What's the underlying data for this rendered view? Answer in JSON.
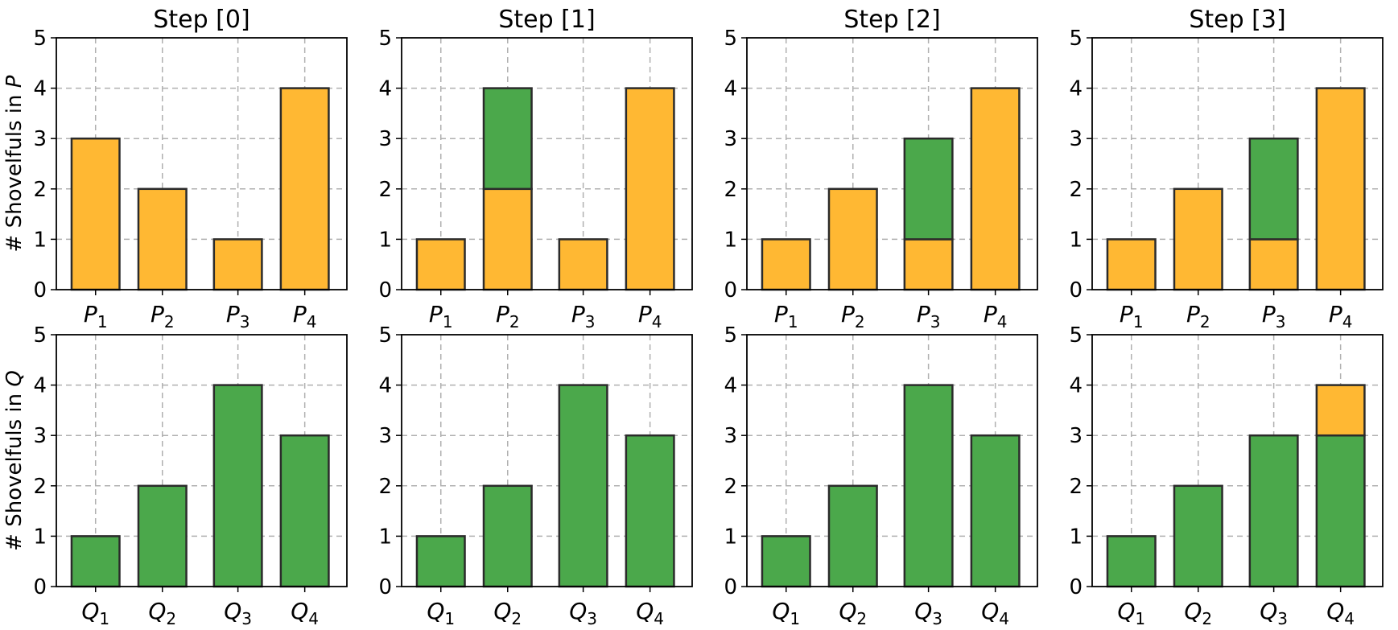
{
  "chart_data": {
    "type": "bar",
    "layout": "2x4 grid of stacked bar charts",
    "colors": {
      "orange": "#FFB833",
      "green": "#4BA84B",
      "edge": "#2b2b2b",
      "grid": "#b0b0b0"
    },
    "ylim": [
      0,
      5
    ],
    "yticks": [
      "0",
      "1",
      "2",
      "3",
      "4",
      "5"
    ],
    "grid": true,
    "column_titles": [
      "Step [0]",
      "Step [1]",
      "Step [2]",
      "Step [3]"
    ],
    "rows": [
      {
        "ylabel_prefix": "# Shovelfuls in ",
        "ylabel_var": "P",
        "category_letter": "P",
        "category_subs": [
          "1",
          "2",
          "3",
          "4"
        ],
        "steps": [
          {
            "title": "Step [0]",
            "bars": [
              [
                {
                  "color": "orange",
                  "value": 3
                }
              ],
              [
                {
                  "color": "orange",
                  "value": 2
                }
              ],
              [
                {
                  "color": "orange",
                  "value": 1
                }
              ],
              [
                {
                  "color": "orange",
                  "value": 4
                }
              ]
            ]
          },
          {
            "title": "Step [1]",
            "bars": [
              [
                {
                  "color": "orange",
                  "value": 1
                }
              ],
              [
                {
                  "color": "orange",
                  "value": 2
                },
                {
                  "color": "green",
                  "value": 2
                }
              ],
              [
                {
                  "color": "orange",
                  "value": 1
                }
              ],
              [
                {
                  "color": "orange",
                  "value": 4
                }
              ]
            ]
          },
          {
            "title": "Step [2]",
            "bars": [
              [
                {
                  "color": "orange",
                  "value": 1
                }
              ],
              [
                {
                  "color": "orange",
                  "value": 2
                }
              ],
              [
                {
                  "color": "orange",
                  "value": 1
                },
                {
                  "color": "green",
                  "value": 2
                }
              ],
              [
                {
                  "color": "orange",
                  "value": 4
                }
              ]
            ]
          },
          {
            "title": "Step [3]",
            "bars": [
              [
                {
                  "color": "orange",
                  "value": 1
                }
              ],
              [
                {
                  "color": "orange",
                  "value": 2
                }
              ],
              [
                {
                  "color": "orange",
                  "value": 1
                },
                {
                  "color": "green",
                  "value": 2
                }
              ],
              [
                {
                  "color": "orange",
                  "value": 4
                }
              ]
            ]
          }
        ]
      },
      {
        "ylabel_prefix": "# Shovelfuls in ",
        "ylabel_var": "Q",
        "category_letter": "Q",
        "category_subs": [
          "1",
          "2",
          "3",
          "4"
        ],
        "steps": [
          {
            "title": "Step [0]",
            "bars": [
              [
                {
                  "color": "green",
                  "value": 1
                }
              ],
              [
                {
                  "color": "green",
                  "value": 2
                }
              ],
              [
                {
                  "color": "green",
                  "value": 4
                }
              ],
              [
                {
                  "color": "green",
                  "value": 3
                }
              ]
            ]
          },
          {
            "title": "Step [1]",
            "bars": [
              [
                {
                  "color": "green",
                  "value": 1
                }
              ],
              [
                {
                  "color": "green",
                  "value": 2
                }
              ],
              [
                {
                  "color": "green",
                  "value": 4
                }
              ],
              [
                {
                  "color": "green",
                  "value": 3
                }
              ]
            ]
          },
          {
            "title": "Step [2]",
            "bars": [
              [
                {
                  "color": "green",
                  "value": 1
                }
              ],
              [
                {
                  "color": "green",
                  "value": 2
                }
              ],
              [
                {
                  "color": "green",
                  "value": 4
                }
              ],
              [
                {
                  "color": "green",
                  "value": 3
                }
              ]
            ]
          },
          {
            "title": "Step [3]",
            "bars": [
              [
                {
                  "color": "green",
                  "value": 1
                }
              ],
              [
                {
                  "color": "green",
                  "value": 2
                }
              ],
              [
                {
                  "color": "green",
                  "value": 3
                }
              ],
              [
                {
                  "color": "green",
                  "value": 3
                },
                {
                  "color": "orange",
                  "value": 1
                }
              ]
            ]
          }
        ]
      }
    ]
  }
}
